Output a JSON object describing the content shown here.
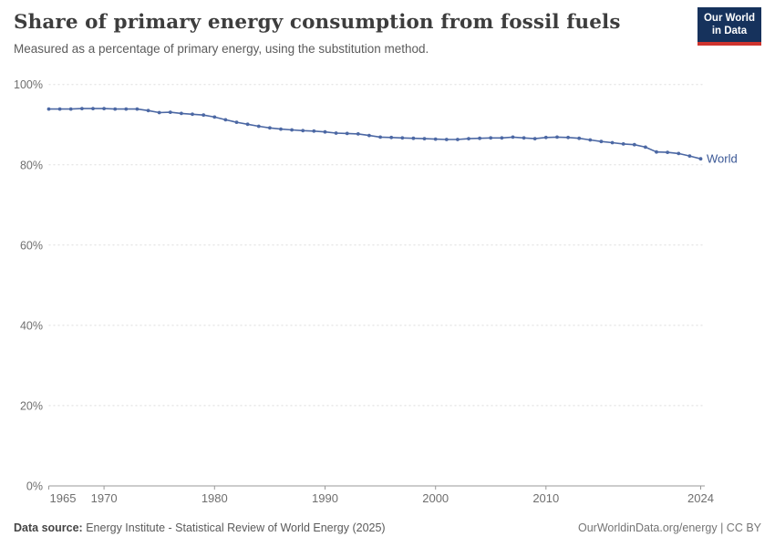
{
  "header": {
    "title": "Share of primary energy consumption from fossil fuels",
    "subtitle": "Measured as a percentage of primary energy, using the substitution method.",
    "logo": {
      "line1": "Our World",
      "line2": "in Data",
      "bg": "#16325c",
      "accent": "#cf342e"
    }
  },
  "chart_data": {
    "type": "line",
    "title": "Share of primary energy consumption from fossil fuels",
    "subtitle": "Measured as a percentage of primary energy, using the substitution method.",
    "xlabel": "",
    "ylabel": "",
    "xlim": [
      1965,
      2024
    ],
    "ylim": [
      0,
      100
    ],
    "grid": "horizontal-dashed",
    "legend_position": "end-of-line-label",
    "x_ticks": [
      1965,
      1970,
      1980,
      1990,
      2000,
      2010,
      2024
    ],
    "y_ticks": [
      0,
      20,
      40,
      60,
      80,
      100
    ],
    "y_tick_suffix": "%",
    "series": [
      {
        "name": "World",
        "color": "#4c68a4",
        "x": [
          1965,
          1966,
          1967,
          1968,
          1969,
          1970,
          1971,
          1972,
          1973,
          1974,
          1975,
          1976,
          1977,
          1978,
          1979,
          1980,
          1981,
          1982,
          1983,
          1984,
          1985,
          1986,
          1987,
          1988,
          1989,
          1990,
          1991,
          1992,
          1993,
          1994,
          1995,
          1996,
          1997,
          1998,
          1999,
          2000,
          2001,
          2002,
          2003,
          2004,
          2005,
          2006,
          2007,
          2008,
          2009,
          2010,
          2011,
          2012,
          2013,
          2014,
          2015,
          2016,
          2017,
          2018,
          2019,
          2020,
          2021,
          2022,
          2023,
          2024
        ],
        "values": [
          93.9,
          93.9,
          93.9,
          94.0,
          94.0,
          94.0,
          93.9,
          93.9,
          93.9,
          93.5,
          93.0,
          93.1,
          92.8,
          92.6,
          92.4,
          91.9,
          91.2,
          90.6,
          90.1,
          89.6,
          89.2,
          88.9,
          88.7,
          88.5,
          88.4,
          88.2,
          87.9,
          87.8,
          87.7,
          87.3,
          86.9,
          86.8,
          86.7,
          86.6,
          86.5,
          86.4,
          86.3,
          86.3,
          86.5,
          86.6,
          86.7,
          86.7,
          86.9,
          86.7,
          86.5,
          86.8,
          86.9,
          86.8,
          86.6,
          86.2,
          85.8,
          85.5,
          85.2,
          85.0,
          84.4,
          83.2,
          83.1,
          82.8,
          82.2,
          81.5
        ]
      }
    ],
    "end_label": "World",
    "colors": {
      "line": "#4c68a4",
      "end_label": "#3a5795",
      "grid": "#dddddd",
      "axis": "#999999",
      "tick_text": "#6f6f6f"
    }
  },
  "footer": {
    "source_label": "Data source:",
    "source_text": " Energy Institute - Statistical Review of World Energy (2025)",
    "credit": "OurWorldinData.org/energy | CC BY"
  }
}
